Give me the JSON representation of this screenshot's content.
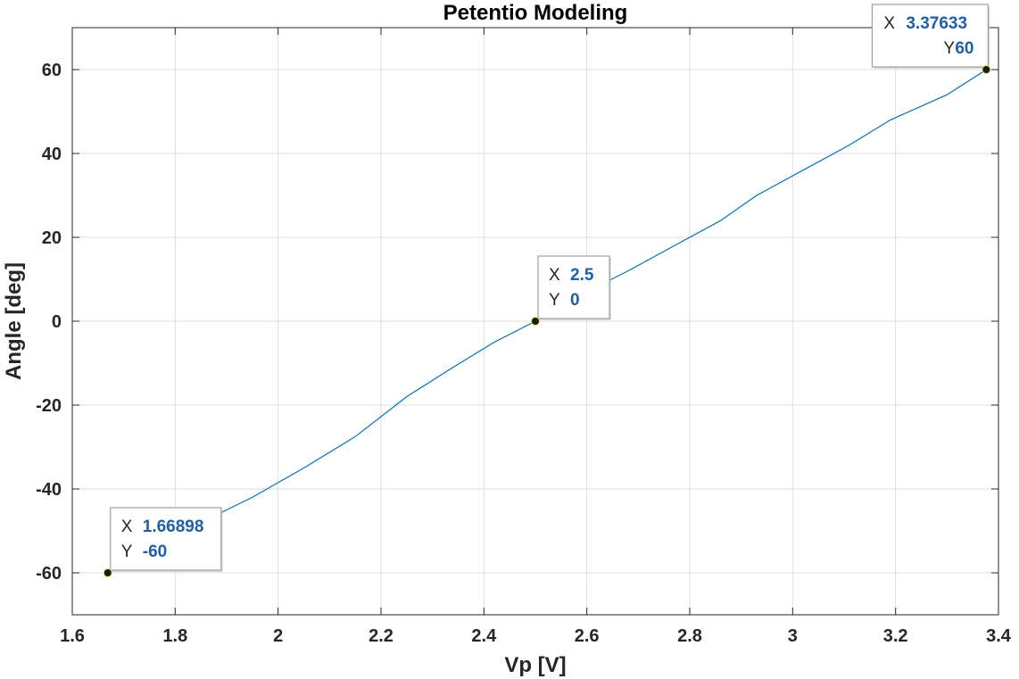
{
  "chart_data": {
    "type": "line",
    "title": "Petentio Modeling",
    "xlabel": "Vp [V]",
    "ylabel": "Angle [deg]",
    "xlim": [
      1.6,
      3.4
    ],
    "ylim": [
      -70,
      70
    ],
    "xticks": [
      1.6,
      1.8,
      2,
      2.2,
      2.4,
      2.6,
      2.8,
      3,
      3.2,
      3.4
    ],
    "xtick_labels": [
      "1.6",
      "1.8",
      "2",
      "2.2",
      "2.4",
      "2.6",
      "2.8",
      "3",
      "3.2",
      "3.4"
    ],
    "yticks": [
      -60,
      -40,
      -20,
      0,
      20,
      40,
      60
    ],
    "ytick_labels": [
      "-60",
      "-40",
      "-20",
      "0",
      "20",
      "40",
      "60"
    ],
    "grid": true,
    "colors": {
      "line": "#0072bd",
      "grid": "#dedede",
      "axis": "#262626",
      "marker": "#1a1a1a",
      "tip_value": "#1f5fa6"
    },
    "series": [
      {
        "x": [
          1.66898,
          1.75,
          1.85,
          1.95,
          2.05,
          2.15,
          2.25,
          2.34,
          2.42,
          2.5,
          2.6,
          2.68,
          2.77,
          2.86,
          2.93,
          3.02,
          3.11,
          3.19,
          3.3,
          3.37633
        ],
        "y": [
          -60,
          -54,
          -48,
          -42,
          -35,
          -27.5,
          -18,
          -11,
          -5,
          0,
          7,
          12,
          18,
          24,
          30,
          36,
          42,
          48,
          54,
          60
        ]
      }
    ],
    "datatips": [
      {
        "x_label": "X",
        "x_value": "1.66898",
        "y_label": "Y",
        "y_value": "-60",
        "x": 1.66898,
        "y": -60
      },
      {
        "x_label": "X",
        "x_value": "2.5",
        "y_label": "Y",
        "y_value": "0",
        "x": 2.5,
        "y": 0
      },
      {
        "x_label": "X",
        "x_value": "3.37633",
        "y_label": "Y",
        "y_value": "60",
        "x": 3.37633,
        "y": 60
      }
    ]
  }
}
